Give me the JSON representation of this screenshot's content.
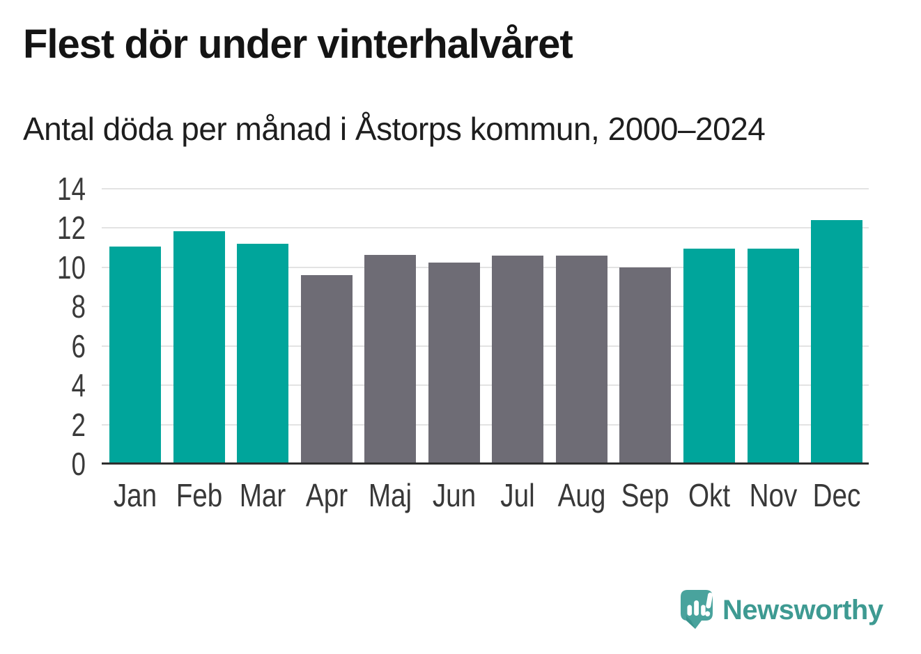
{
  "chart_data": {
    "type": "bar",
    "title": "Flest dör under vinterhalvåret",
    "subtitle": "Antal döda per månad i Åstorps kommun, 2000–2024",
    "categories": [
      "Jan",
      "Feb",
      "Mar",
      "Apr",
      "Maj",
      "Jun",
      "Jul",
      "Aug",
      "Sep",
      "Okt",
      "Nov",
      "Dec"
    ],
    "values": [
      11.05,
      11.85,
      11.2,
      9.6,
      10.65,
      10.25,
      10.6,
      10.6,
      10.0,
      10.95,
      10.95,
      12.4
    ],
    "bar_colors": [
      "#00a59b",
      "#00a59b",
      "#00a59b",
      "#6e6c75",
      "#6e6c75",
      "#6e6c75",
      "#6e6c75",
      "#6e6c75",
      "#6e6c75",
      "#00a59b",
      "#00a59b",
      "#00a59b"
    ],
    "xlabel": "",
    "ylabel": "",
    "ylim": [
      0,
      14
    ],
    "y_ticks": [
      0,
      2,
      4,
      6,
      8,
      10,
      12,
      14
    ],
    "grid": true,
    "legend": "none",
    "colors": {
      "winter_months": "#00a59b",
      "summer_months": "#6e6c75",
      "gridline": "#e3e3e3",
      "axis_line": "#2e2e2e",
      "tick_text": "#3a3a3a",
      "title_text": "#141414"
    }
  },
  "branding": {
    "logo_text": "Newsworthy",
    "logo_color": "#3e9a92",
    "icon": "newsworthy-speech-bubble-barchart-icon",
    "icon_bubble_color": "#49a39d"
  }
}
